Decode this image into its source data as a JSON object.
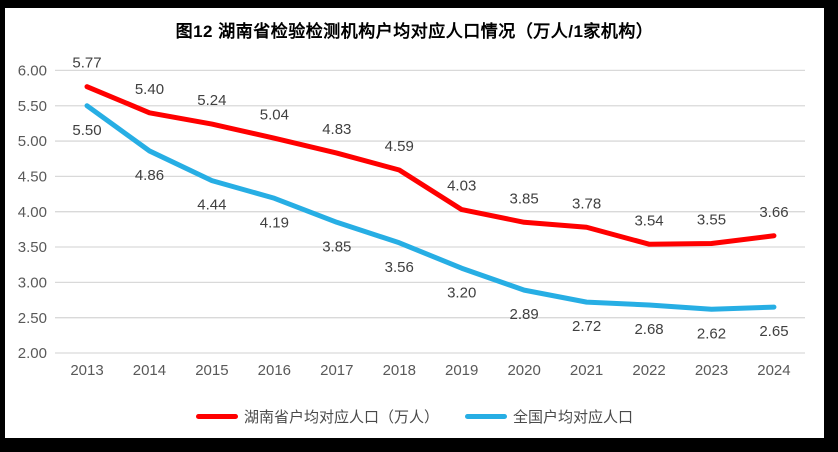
{
  "frame": {
    "background_color": "#000000",
    "canvas_color": "#ffffff"
  },
  "chart_data": {
    "type": "line",
    "title": "图12 湖南省检验检测机构户均对应人口情况（万人/1家机构）",
    "categories": [
      "2013",
      "2014",
      "2015",
      "2016",
      "2017",
      "2018",
      "2019",
      "2020",
      "2021",
      "2022",
      "2023",
      "2024"
    ],
    "series": [
      {
        "name": "湖南省户均对应人口（万人）",
        "color": "#ff0000",
        "values": [
          5.77,
          5.4,
          5.24,
          5.04,
          4.83,
          4.59,
          4.03,
          3.85,
          3.78,
          3.54,
          3.55,
          3.66
        ],
        "label_position": "above"
      },
      {
        "name": "全国户均对应人口",
        "color": "#27aee4",
        "values": [
          5.5,
          4.86,
          4.44,
          4.19,
          3.85,
          3.56,
          3.2,
          2.89,
          2.72,
          2.68,
          2.62,
          2.65
        ],
        "label_position": "below"
      }
    ],
    "y_axis": {
      "min": 2.0,
      "max": 6.0,
      "step": 0.5,
      "ticks": [
        "6.00",
        "5.50",
        "5.00",
        "4.50",
        "4.00",
        "3.50",
        "3.00",
        "2.50",
        "2.00"
      ]
    },
    "xlabel": "",
    "ylabel": "",
    "grid": true,
    "legend_position": "bottom",
    "data_labels": true,
    "colors": {
      "gridline": "#d9d9d9",
      "tick_text": "#595959",
      "data_label_text": "#404040"
    }
  }
}
